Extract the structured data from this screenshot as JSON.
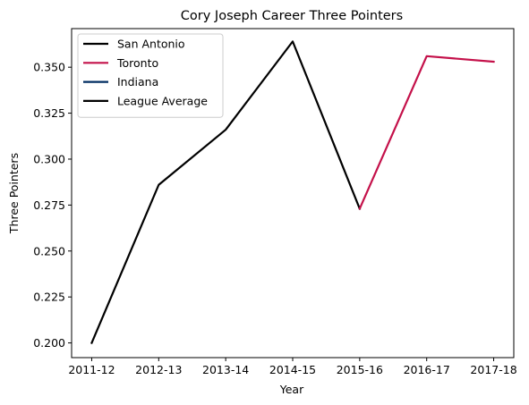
{
  "chart_data": {
    "type": "line",
    "title": "Cory Joseph Career Three Pointers",
    "xlabel": "Year",
    "ylabel": "Three Pointers",
    "categories": [
      "2011-12",
      "2012-13",
      "2013-14",
      "2014-15",
      "2015-16",
      "2016-17",
      "2017-18"
    ],
    "ylim": [
      0.192,
      0.371
    ],
    "yticks": [
      0.2,
      0.225,
      0.25,
      0.275,
      0.3,
      0.325,
      0.35
    ],
    "ytick_labels": [
      "0.200",
      "0.225",
      "0.250",
      "0.275",
      "0.300",
      "0.325",
      "0.350"
    ],
    "legend_position": "upper-left",
    "series": [
      {
        "name": "San Antonio",
        "color": "#000000",
        "x": [
          "2011-12",
          "2012-13",
          "2013-14",
          "2014-15",
          "2015-16"
        ],
        "values": [
          0.2,
          0.286,
          0.316,
          0.364,
          0.273
        ]
      },
      {
        "name": "Toronto",
        "color": "#c4114a",
        "x": [
          "2015-16",
          "2016-17",
          "2017-18"
        ],
        "values": [
          0.273,
          0.356,
          0.353
        ]
      },
      {
        "name": "Indiana",
        "color": "#002d62",
        "x": [],
        "values": []
      },
      {
        "name": "League Average",
        "color": "#000000",
        "x": [],
        "values": []
      }
    ]
  }
}
